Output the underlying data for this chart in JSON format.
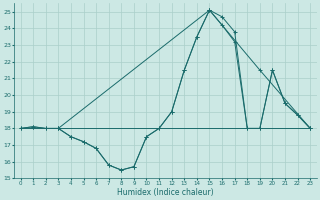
{
  "xlabel": "Humidex (Indice chaleur)",
  "xlim": [
    -0.5,
    23.5
  ],
  "ylim": [
    15,
    25.5
  ],
  "yticks": [
    15,
    16,
    17,
    18,
    19,
    20,
    21,
    22,
    23,
    24,
    25
  ],
  "xticks": [
    0,
    1,
    2,
    3,
    4,
    5,
    6,
    7,
    8,
    9,
    10,
    11,
    12,
    13,
    14,
    15,
    16,
    17,
    18,
    19,
    20,
    21,
    22,
    23
  ],
  "bg_color": "#cce8e4",
  "grid_color": "#aacfca",
  "line_color": "#1a6b6b",
  "line1_x": [
    0,
    1,
    2,
    3,
    4,
    5,
    6,
    7,
    8,
    9,
    10,
    11,
    12,
    13,
    14,
    15,
    16,
    17,
    18,
    19,
    20,
    21,
    22,
    23
  ],
  "line1_y": [
    18.0,
    18.1,
    18.0,
    18.0,
    17.5,
    17.2,
    16.8,
    15.8,
    15.5,
    15.7,
    17.5,
    18.0,
    19.0,
    21.5,
    23.5,
    25.1,
    24.7,
    23.8,
    18.0,
    18.0,
    21.5,
    19.5,
    18.8,
    18.0
  ],
  "line2_x": [
    0,
    1,
    2,
    3,
    4,
    5,
    6,
    7,
    8,
    9,
    10,
    11,
    12,
    13,
    14,
    15,
    16,
    17,
    18,
    19,
    20,
    21,
    22,
    23
  ],
  "line2_y": [
    18.0,
    18.1,
    18.0,
    18.0,
    17.5,
    17.2,
    16.8,
    15.8,
    15.5,
    15.7,
    17.5,
    18.0,
    19.0,
    21.5,
    23.5,
    25.1,
    24.2,
    23.2,
    18.0,
    18.0,
    21.5,
    19.5,
    18.8,
    18.0
  ],
  "line3_x": [
    0,
    23
  ],
  "line3_y": [
    18.0,
    18.0
  ],
  "line4_x": [
    3,
    15,
    19,
    23
  ],
  "line4_y": [
    18.0,
    25.1,
    21.5,
    18.0
  ]
}
